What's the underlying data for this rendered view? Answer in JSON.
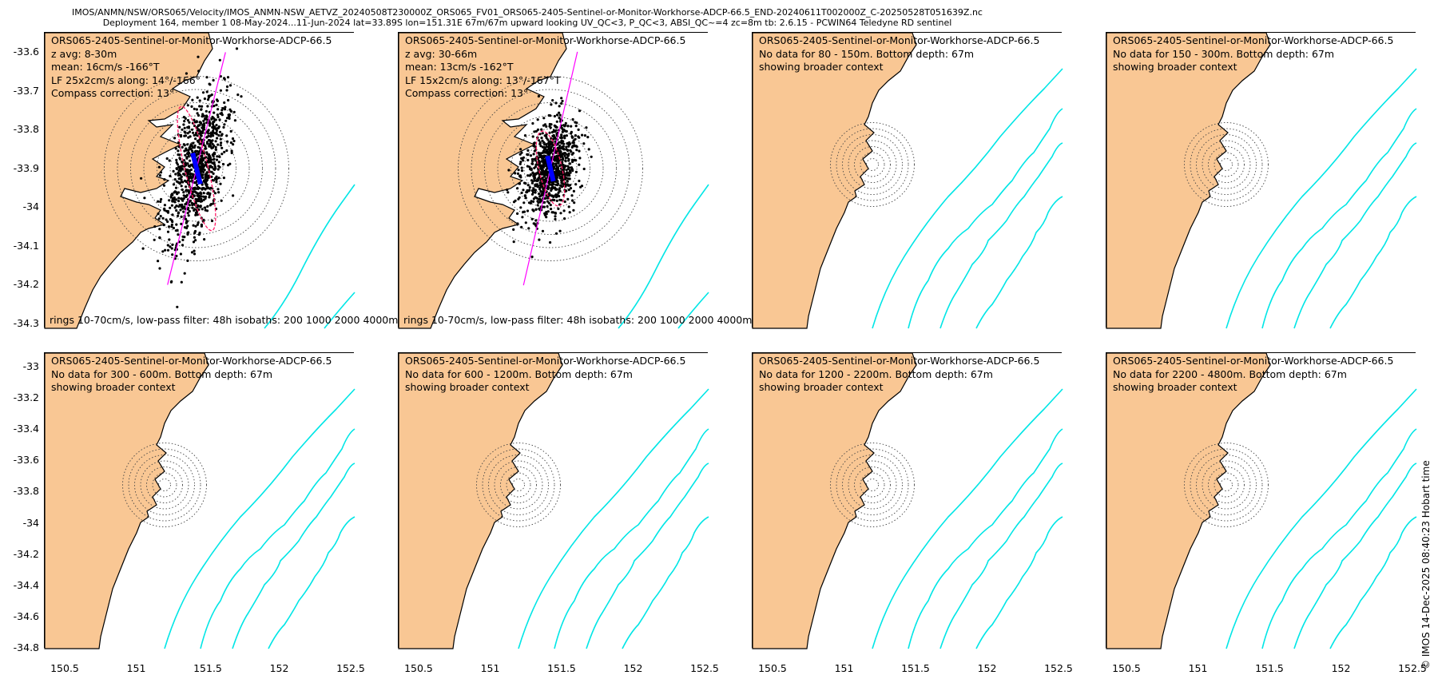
{
  "header": {
    "line1": "IMOS/ANMN/NSW/ORS065/Velocity/IMOS_ANMN-NSW_AETVZ_20240508T230000Z_ORS065_FV01_ORS065-2405-Sentinel-or-Monitor-Workhorse-ADCP-66.5_END-20240611T002000Z_C-20250528T051639Z.nc",
    "line2": "Deployment 164, member 1 08-May-2024...11-Jun-2024 lat=33.89S lon=151.31E 67m/67m upward looking UV_QC<3, P_QC<3, ABSI_QC~=4 zc=8m tb: 2.6.15 - PCWIN64 Teledyne RD sentinel"
  },
  "colors": {
    "land": "#f9c794",
    "isobath": "#00e6e6",
    "scatter": "#000000",
    "ellipse": "#ff1a66",
    "axis_line": "#ff00ff",
    "mean_vector": "#0000ff"
  },
  "top_y_ticks": [
    "-33.6",
    "-33.7",
    "-33.8",
    "-33.9",
    "-34",
    "-34.1",
    "-34.2",
    "-34.3"
  ],
  "bottom_y_ticks": [
    "-33",
    "-33.2",
    "-33.4",
    "-33.6",
    "-33.8",
    "-34",
    "-34.2",
    "-34.4",
    "-34.6",
    "-34.8"
  ],
  "x_ticks": [
    "150.5",
    "151",
    "151.5",
    "152",
    "152.5"
  ],
  "panels": [
    {
      "id": "p1",
      "lines": [
        "ORS065-2405-Sentinel-or-Monitor-Workhorse-ADCP-66.5",
        "z avg: 8-30m",
        "mean: 16cm/s -166°T",
        "LF 25x2cm/s along: 14°/-166°",
        "Compass correction: 13°"
      ],
      "footnote": "rings 10-70cm/s, low-pass filter: 48h isobaths: 200 1000 2000 4000m",
      "has_data": true,
      "scatter_angle_deg": 14,
      "scatter_along": 25,
      "scatter_cross": 2,
      "mean_speed": 16
    },
    {
      "id": "p2",
      "lines": [
        "ORS065-2405-Sentinel-or-Monitor-Workhorse-ADCP-66.5",
        "z avg: 30-66m",
        "mean: 13cm/s -162°T",
        "LF 15x2cm/s along: 13°/-167°T",
        "Compass correction: 13°"
      ],
      "footnote": "rings 10-70cm/s, low-pass filter: 48h isobaths: 200 1000 2000 4000m",
      "has_data": true,
      "scatter_angle_deg": 13,
      "scatter_along": 15,
      "scatter_cross": 2,
      "mean_speed": 13
    },
    {
      "id": "p3",
      "lines": [
        "ORS065-2405-Sentinel-or-Monitor-Workhorse-ADCP-66.5",
        "No data for 80 - 150m. Bottom depth: 67m",
        "showing broader context"
      ],
      "has_data": false
    },
    {
      "id": "p4",
      "lines": [
        "ORS065-2405-Sentinel-or-Monitor-Workhorse-ADCP-66.5",
        "No data for 150 - 300m. Bottom depth: 67m",
        "showing broader context"
      ],
      "has_data": false
    },
    {
      "id": "p5",
      "lines": [
        "ORS065-2405-Sentinel-or-Monitor-Workhorse-ADCP-66.5",
        "No data for 300 - 600m. Bottom depth: 67m",
        "showing broader context"
      ],
      "has_data": false
    },
    {
      "id": "p6",
      "lines": [
        "ORS065-2405-Sentinel-or-Monitor-Workhorse-ADCP-66.5",
        "No data for 600 - 1200m. Bottom depth: 67m",
        "showing broader context"
      ],
      "has_data": false
    },
    {
      "id": "p7",
      "lines": [
        "ORS065-2405-Sentinel-or-Monitor-Workhorse-ADCP-66.5",
        "No data for 1200 - 2200m. Bottom depth: 67m",
        "showing broader context"
      ],
      "has_data": false
    },
    {
      "id": "p8",
      "lines": [
        "ORS065-2405-Sentinel-or-Monitor-Workhorse-ADCP-66.5",
        "No data for 2200 - 4800m. Bottom depth: 67m",
        "showing broader context"
      ],
      "has_data": false
    }
  ],
  "copyright": "© IMOS 14-Dec-2025 08:40:23 Hobart time"
}
